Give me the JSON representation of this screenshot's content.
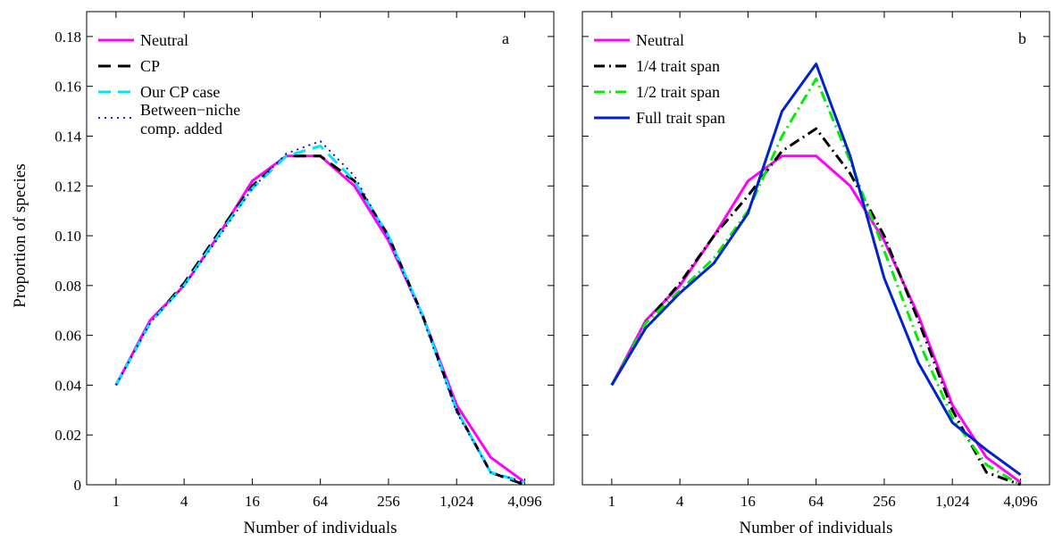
{
  "shared": {
    "ylabel": "Proportion of species",
    "xlabel": "Number of individuals"
  },
  "chart_data": [
    {
      "type": "line",
      "panel_label": "a",
      "xlabel": "Number of individuals",
      "ylabel": "Proportion of species",
      "x_scale": "log2",
      "x": [
        1,
        2,
        4,
        8,
        16,
        32,
        64,
        128,
        256,
        512,
        1024,
        2048,
        4096
      ],
      "x_ticks": [
        1,
        4,
        16,
        64,
        256,
        1024,
        4096
      ],
      "x_tick_labels": [
        "1",
        "4",
        "16",
        "64",
        "256",
        "1,024",
        "4,096"
      ],
      "xlim": [
        0.55,
        7400
      ],
      "ylim": [
        0,
        0.19
      ],
      "y_ticks": [
        0,
        0.02,
        0.04,
        0.06,
        0.08,
        0.1,
        0.12,
        0.14,
        0.16,
        0.18
      ],
      "y_tick_labels": [
        "0",
        "0.02",
        "0.04",
        "0.06",
        "0.08",
        "0.10",
        "0.12",
        "0.14",
        "0.16",
        "0.18"
      ],
      "legend_position": "top-left",
      "series": [
        {
          "name": "Neutral",
          "color": "#ff00ff",
          "dash": "solid",
          "width": 3,
          "values": [
            0.04,
            0.066,
            0.08,
            0.1,
            0.122,
            0.132,
            0.132,
            0.12,
            0.098,
            0.068,
            0.032,
            0.011,
            0.001
          ]
        },
        {
          "name": "CP",
          "color": "#000000",
          "dash": "dashed",
          "width": 3,
          "values": [
            0.04,
            0.065,
            0.081,
            0.101,
            0.12,
            0.132,
            0.132,
            0.122,
            0.1,
            0.068,
            0.03,
            0.005,
            0.0
          ]
        },
        {
          "name": "Our CP case",
          "color": "#00e5ff",
          "dash": "dashed",
          "width": 3,
          "values": [
            0.04,
            0.065,
            0.08,
            0.1,
            0.119,
            0.132,
            0.136,
            0.122,
            0.1,
            0.068,
            0.03,
            0.005,
            0.001
          ]
        },
        {
          "name": "Between−niche comp. added",
          "color": "#0000cc",
          "dash": "dotted",
          "width": 1.8,
          "values": [
            0.04,
            0.065,
            0.08,
            0.099,
            0.119,
            0.133,
            0.138,
            0.124,
            0.099,
            0.067,
            0.029,
            0.005,
            0.001
          ]
        }
      ]
    },
    {
      "type": "line",
      "panel_label": "b",
      "xlabel": "Number of individuals",
      "x_scale": "log2",
      "x": [
        1,
        2,
        4,
        8,
        16,
        32,
        64,
        128,
        256,
        512,
        1024,
        2048,
        4096
      ],
      "x_ticks": [
        1,
        4,
        16,
        64,
        256,
        1024,
        4096
      ],
      "x_tick_labels": [
        "1",
        "4",
        "16",
        "64",
        "256",
        "1,024",
        "4,096"
      ],
      "xlim": [
        0.55,
        7400
      ],
      "ylim": [
        0,
        0.19
      ],
      "y_ticks": [
        0,
        0.02,
        0.04,
        0.06,
        0.08,
        0.1,
        0.12,
        0.14,
        0.16,
        0.18
      ],
      "legend_position": "top-left",
      "series": [
        {
          "name": "Neutral",
          "color": "#ff00ff",
          "dash": "solid",
          "width": 3,
          "values": [
            0.04,
            0.066,
            0.08,
            0.1,
            0.122,
            0.132,
            0.132,
            0.12,
            0.098,
            0.068,
            0.032,
            0.011,
            0.001
          ]
        },
        {
          "name": "1/4 trait span",
          "color": "#000000",
          "dash": "dashdot",
          "width": 3,
          "values": [
            0.04,
            0.065,
            0.081,
            0.1,
            0.116,
            0.134,
            0.143,
            0.125,
            0.1,
            0.066,
            0.03,
            0.005,
            0.0
          ]
        },
        {
          "name": "1/2 trait span",
          "color": "#00ee00",
          "dash": "dashdot",
          "width": 3,
          "values": [
            0.04,
            0.065,
            0.078,
            0.091,
            0.11,
            0.14,
            0.163,
            0.13,
            0.094,
            0.058,
            0.027,
            0.008,
            0.0
          ]
        },
        {
          "name": "Full trait span",
          "color": "#0022cc",
          "dash": "solid",
          "width": 3,
          "values": [
            0.04,
            0.063,
            0.077,
            0.089,
            0.109,
            0.15,
            0.169,
            0.132,
            0.083,
            0.049,
            0.025,
            0.014,
            0.004
          ]
        }
      ]
    }
  ]
}
